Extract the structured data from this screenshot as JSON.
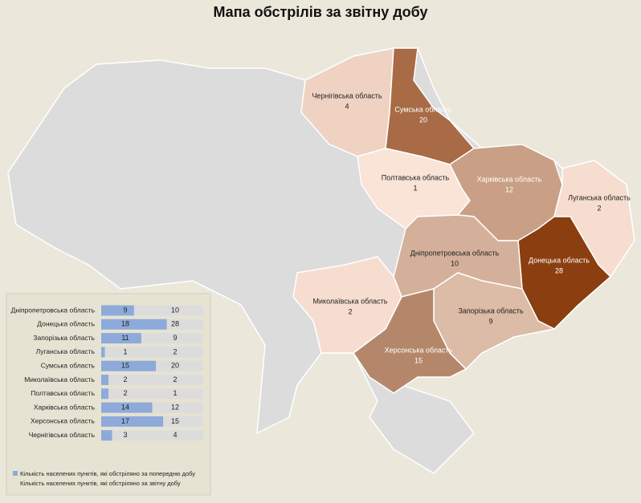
{
  "title": "Мапа обстрілів за звітну добу",
  "map": {
    "regions": [
      {
        "name": "Чернігівська область",
        "value": 4,
        "color": "#efd2c2"
      },
      {
        "name": "Сумська область",
        "value": 20,
        "color": "#a86b45"
      },
      {
        "name": "Полтавська область",
        "value": 1,
        "color": "#fae3d7"
      },
      {
        "name": "Харківська область",
        "value": 12,
        "color": "#c9a085"
      },
      {
        "name": "Луганська область",
        "value": 2,
        "color": "#f6ddd0"
      },
      {
        "name": "Донецька область",
        "value": 28,
        "color": "#8b3e10"
      },
      {
        "name": "Дніпропетровська область",
        "value": 10,
        "color": "#d4b09b"
      },
      {
        "name": "Запорізька область",
        "value": 9,
        "color": "#dcbca7"
      },
      {
        "name": "Херсонська область",
        "value": 15,
        "color": "#b5876a"
      },
      {
        "name": "Миколаївська область",
        "value": 2,
        "color": "#f6ddd0"
      }
    ]
  },
  "panel": {
    "categories": [
      "Дніпропетровська область",
      "Донецька область",
      "Запорізька область",
      "Луганська область",
      "Сумська область",
      "Миколаївська область",
      "Полтавська область",
      "Харківська область",
      "Херсонська область",
      "Чернігівська область"
    ],
    "series": [
      {
        "name": "Кількість населених пунктів, які обстріляно за попередню добу",
        "color": "#8eaadb",
        "values": [
          9,
          18,
          11,
          1,
          15,
          2,
          2,
          14,
          17,
          3
        ]
      },
      {
        "name": "Кількість населених пунктів, які обстріляно за звітну добу",
        "color": "#dcdcdc",
        "values": [
          10,
          28,
          9,
          2,
          20,
          2,
          1,
          12,
          15,
          4
        ]
      }
    ]
  }
}
